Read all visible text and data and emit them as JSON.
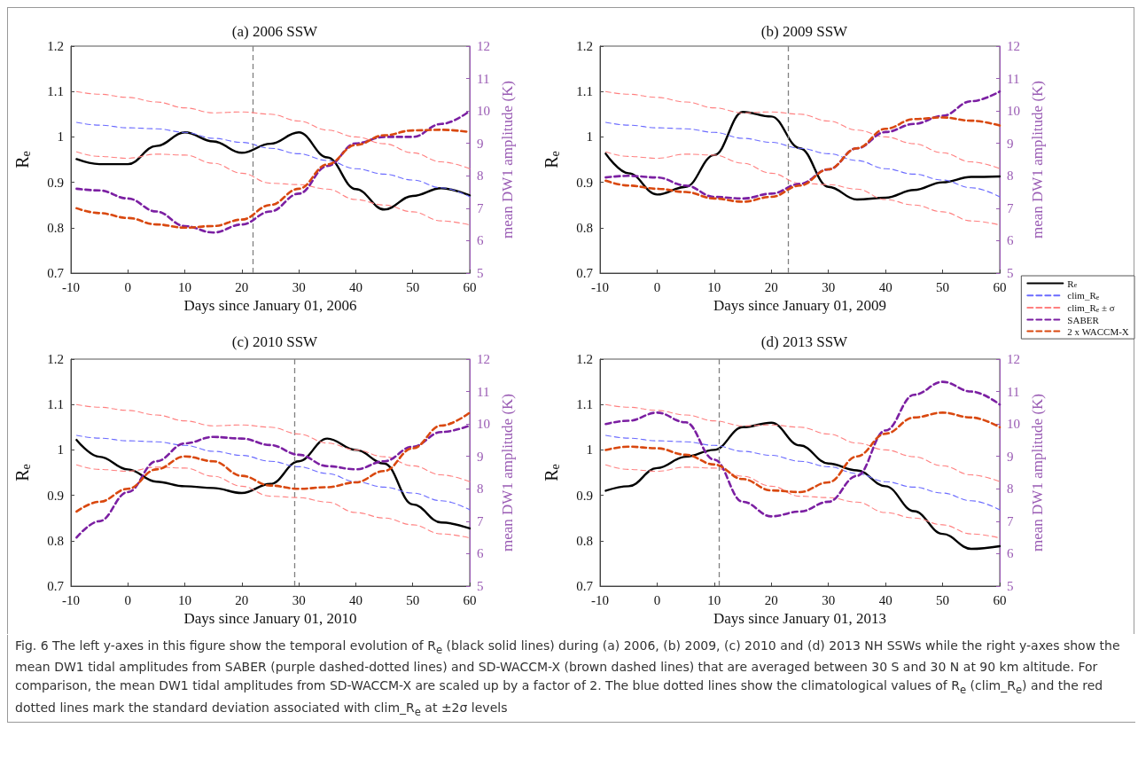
{
  "chart_data": [
    {
      "type": "line",
      "title": "(a) 2006 SSW",
      "xlabel": "Days since January 01, 2006",
      "ylabel": "R$_{e}$",
      "y2label": "mean DW1 amplitude (K)",
      "x": [
        -9,
        -5,
        0,
        5,
        10,
        15,
        20,
        25,
        30,
        35,
        40,
        45,
        50,
        55,
        60
      ],
      "xlim": [
        -10,
        60
      ],
      "xticks": [
        -10,
        0,
        10,
        20,
        30,
        40,
        50,
        60
      ],
      "ylim": [
        0.7,
        1.2
      ],
      "yticks": [
        0.7,
        0.8,
        0.9,
        1,
        1.1,
        1.2
      ],
      "y2lim": [
        5,
        12
      ],
      "y2ticks": [
        5,
        6,
        7,
        8,
        9,
        10,
        11,
        12
      ],
      "grid": false,
      "legend": false,
      "ref_lines": [
        {
          "axis": "x",
          "value": 22,
          "color": "#808080",
          "line_style": "dashed"
        }
      ],
      "series": [
        {
          "color": "#000000",
          "line_style": "solid",
          "values": [
            0.951,
            0.94,
            0.94,
            0.98,
            1.01,
            0.99,
            0.965,
            0.985,
            1.01,
            0.955,
            0.885,
            0.84,
            0.87,
            0.887,
            0.871
          ]
        },
        {
          "color": "#6b6bff",
          "line_style": "dashed",
          "values": [
            1.032,
            1.026,
            1.02,
            1.018,
            1.01,
            0.997,
            0.988,
            0.975,
            0.963,
            0.948,
            0.93,
            0.918,
            0.905,
            0.888,
            0.868
          ]
        },
        {
          "color": "#ff8080",
          "line_style": "dashed",
          "values": [
            1.1,
            1.094,
            1.087,
            1.077,
            1.064,
            1.053,
            1.055,
            1.05,
            1.035,
            1.015,
            1.0,
            0.985,
            0.965,
            0.945,
            0.93
          ]
        },
        {
          "color": "#ff8080",
          "line_style": "dashed",
          "values": [
            0.967,
            0.957,
            0.953,
            0.962,
            0.96,
            0.942,
            0.92,
            0.898,
            0.895,
            0.885,
            0.862,
            0.85,
            0.835,
            0.815,
            0.806
          ]
        },
        {
          "color": "#7b1fa2",
          "line_style": "dashed",
          "axis": "y2",
          "values": [
            7.6,
            7.55,
            7.3,
            6.9,
            6.45,
            6.25,
            6.5,
            6.9,
            7.45,
            8.3,
            9.0,
            9.2,
            9.2,
            9.6,
            10.0
          ]
        },
        {
          "color": "#d9480f",
          "line_style": "dashed",
          "axis": "y2",
          "values": [
            7.0,
            6.85,
            6.7,
            6.5,
            6.4,
            6.45,
            6.65,
            7.1,
            7.6,
            8.35,
            8.95,
            9.25,
            9.4,
            9.42,
            9.35
          ]
        }
      ]
    },
    {
      "type": "line",
      "title": "(b) 2009 SSW",
      "xlabel": "Days since January 01, 2009",
      "ylabel": "R$_{e}$",
      "y2label": "mean DW1 amplitude (K)",
      "x": [
        -9,
        -5,
        0,
        5,
        10,
        15,
        20,
        25,
        30,
        35,
        40,
        45,
        50,
        55,
        60
      ],
      "xlim": [
        -10,
        60
      ],
      "xticks": [
        -10,
        0,
        10,
        20,
        30,
        40,
        50,
        60
      ],
      "ylim": [
        0.7,
        1.2
      ],
      "yticks": [
        0.7,
        0.8,
        0.9,
        1,
        1.1,
        1.2
      ],
      "y2lim": [
        5,
        12
      ],
      "y2ticks": [
        5,
        6,
        7,
        8,
        9,
        10,
        11,
        12
      ],
      "grid": false,
      "legend": "right",
      "ref_lines": [
        {
          "axis": "x",
          "value": 23,
          "color": "#808080",
          "line_style": "dashed"
        }
      ],
      "series": [
        {
          "name": "R$_{e}$",
          "color": "#000000",
          "line_style": "solid",
          "values": [
            0.963,
            0.92,
            0.873,
            0.89,
            0.96,
            1.055,
            1.045,
            0.975,
            0.89,
            0.862,
            0.866,
            0.883,
            0.9,
            0.912,
            0.913
          ]
        },
        {
          "name": "clim_R$_{e}$",
          "color": "#6b6bff",
          "line_style": "dashed",
          "values": [
            1.032,
            1.026,
            1.02,
            1.018,
            1.01,
            0.997,
            0.988,
            0.975,
            0.963,
            0.948,
            0.93,
            0.918,
            0.905,
            0.888,
            0.868
          ]
        },
        {
          "name": "clim_R$_{e}$ ± σ",
          "color": "#ff8080",
          "line_style": "dashed",
          "values": [
            1.1,
            1.094,
            1.087,
            1.077,
            1.064,
            1.053,
            1.055,
            1.05,
            1.035,
            1.015,
            1.0,
            0.985,
            0.965,
            0.945,
            0.93
          ]
        },
        {
          "color": "#ff8080",
          "line_style": "dashed",
          "values": [
            0.967,
            0.957,
            0.953,
            0.962,
            0.96,
            0.942,
            0.92,
            0.898,
            0.895,
            0.885,
            0.862,
            0.85,
            0.835,
            0.815,
            0.806
          ]
        },
        {
          "name": "SABER",
          "color": "#7b1fa2",
          "line_style": "dashed",
          "axis": "y2",
          "values": [
            7.95,
            8.0,
            7.95,
            7.7,
            7.35,
            7.3,
            7.45,
            7.75,
            8.2,
            8.85,
            9.35,
            9.6,
            9.85,
            10.3,
            10.6
          ]
        },
        {
          "name": "2 x WACCM-X",
          "color": "#d9480f",
          "line_style": "dashed",
          "axis": "y2",
          "values": [
            7.85,
            7.7,
            7.6,
            7.5,
            7.3,
            7.2,
            7.35,
            7.7,
            8.2,
            8.85,
            9.45,
            9.75,
            9.8,
            9.7,
            9.55
          ]
        }
      ]
    },
    {
      "type": "line",
      "title": "(c) 2010 SSW",
      "xlabel": "Days since January 01, 2010",
      "ylabel": "R$_{e}$",
      "y2label": "mean DW1 amplitude (K)",
      "x": [
        -9,
        -5,
        0,
        5,
        10,
        15,
        20,
        25,
        30,
        35,
        40,
        45,
        50,
        55,
        60
      ],
      "xlim": [
        -10,
        60
      ],
      "xticks": [
        -10,
        0,
        10,
        20,
        30,
        40,
        50,
        60
      ],
      "ylim": [
        0.7,
        1.2
      ],
      "yticks": [
        0.7,
        0.8,
        0.9,
        1,
        1.1,
        1.2
      ],
      "y2lim": [
        5,
        12
      ],
      "y2ticks": [
        5,
        6,
        7,
        8,
        9,
        10,
        11,
        12
      ],
      "grid": false,
      "legend": false,
      "ref_lines": [
        {
          "axis": "x",
          "value": 29.3,
          "color": "#808080",
          "line_style": "dashed"
        }
      ],
      "series": [
        {
          "color": "#000000",
          "line_style": "solid",
          "values": [
            1.022,
            0.985,
            0.957,
            0.93,
            0.92,
            0.916,
            0.905,
            0.925,
            0.975,
            1.025,
            1.0,
            0.97,
            0.88,
            0.84,
            0.827
          ]
        },
        {
          "color": "#6b6bff",
          "line_style": "dashed",
          "values": [
            1.032,
            1.026,
            1.02,
            1.018,
            1.01,
            0.997,
            0.988,
            0.975,
            0.963,
            0.948,
            0.93,
            0.918,
            0.905,
            0.888,
            0.868
          ]
        },
        {
          "color": "#ff8080",
          "line_style": "dashed",
          "values": [
            1.1,
            1.094,
            1.087,
            1.077,
            1.064,
            1.053,
            1.055,
            1.05,
            1.035,
            1.015,
            1.0,
            0.985,
            0.965,
            0.945,
            0.93
          ]
        },
        {
          "color": "#ff8080",
          "line_style": "dashed",
          "values": [
            0.967,
            0.957,
            0.953,
            0.962,
            0.96,
            0.942,
            0.92,
            0.898,
            0.895,
            0.885,
            0.862,
            0.85,
            0.835,
            0.815,
            0.806
          ]
        },
        {
          "color": "#7b1fa2",
          "line_style": "dashed",
          "axis": "y2",
          "values": [
            6.5,
            7.0,
            7.9,
            8.85,
            9.4,
            9.6,
            9.55,
            9.35,
            9.05,
            8.7,
            8.6,
            8.85,
            9.3,
            9.75,
            9.95
          ]
        },
        {
          "color": "#d9480f",
          "line_style": "dashed",
          "axis": "y2",
          "values": [
            7.3,
            7.6,
            8.0,
            8.6,
            9.0,
            8.85,
            8.4,
            8.1,
            8.0,
            8.05,
            8.2,
            8.55,
            9.25,
            9.95,
            10.35
          ]
        }
      ]
    },
    {
      "type": "line",
      "title": "(d) 2013 SSW",
      "xlabel": "Days since January 01, 2013",
      "ylabel": "R$_{e}$",
      "y2label": "mean DW1 amplitude (K)",
      "x": [
        -9,
        -5,
        0,
        5,
        10,
        15,
        20,
        25,
        30,
        35,
        40,
        45,
        50,
        55,
        60
      ],
      "xlim": [
        -10,
        60
      ],
      "xticks": [
        -10,
        0,
        10,
        20,
        30,
        40,
        50,
        60
      ],
      "ylim": [
        0.7,
        1.2
      ],
      "yticks": [
        0.7,
        0.8,
        0.9,
        1,
        1.1,
        1.2
      ],
      "y2lim": [
        5,
        12
      ],
      "y2ticks": [
        5,
        6,
        7,
        8,
        9,
        10,
        11,
        12
      ],
      "grid": false,
      "legend": false,
      "ref_lines": [
        {
          "axis": "x",
          "value": 10.8,
          "color": "#808080",
          "line_style": "dashed"
        }
      ],
      "annotations": [
        "Fig. 6 The left y-axes in this figure show the temporal evolution of R$_{e}$ (black solid lines) during (a) 2006, (b) 2009, (c) 2010 and (d) 2013 NH SSWs while the right y-axes show the mean DW1 tidal amplitudes from SABER (purple dashed-dotted lines) and SD-WACCM-X (brown dashed lines) that are averaged between 30 S and 30 N at 90 km altitude. For comparison, the mean DW1 tidal amplitudes from SD-WACCM-X are scaled up by a factor of 2. The blue dotted lines show the climatological values of R$_{e}$ (clim_R$_{e}$) and the red dotted lines mark the standard deviation associated with clim_R$_{e}$ at ±2σ levels"
      ],
      "series": [
        {
          "color": "#000000",
          "line_style": "solid",
          "values": [
            0.91,
            0.92,
            0.96,
            0.985,
            1.0,
            1.05,
            1.06,
            1.01,
            0.97,
            0.955,
            0.92,
            0.865,
            0.815,
            0.782,
            0.788
          ]
        },
        {
          "color": "#6b6bff",
          "line_style": "dashed",
          "values": [
            1.032,
            1.026,
            1.02,
            1.018,
            1.01,
            0.997,
            0.988,
            0.975,
            0.963,
            0.948,
            0.93,
            0.918,
            0.905,
            0.888,
            0.868
          ]
        },
        {
          "color": "#ff8080",
          "line_style": "dashed",
          "values": [
            1.1,
            1.094,
            1.087,
            1.077,
            1.064,
            1.053,
            1.055,
            1.05,
            1.035,
            1.015,
            1.0,
            0.985,
            0.965,
            0.945,
            0.93
          ]
        },
        {
          "color": "#ff8080",
          "line_style": "dashed",
          "values": [
            0.967,
            0.957,
            0.953,
            0.962,
            0.96,
            0.942,
            0.92,
            0.898,
            0.895,
            0.885,
            0.862,
            0.85,
            0.835,
            0.815,
            0.806
          ]
        },
        {
          "color": "#7b1fa2",
          "line_style": "dashed",
          "axis": "y2",
          "values": [
            10.0,
            10.1,
            10.35,
            10.05,
            8.9,
            7.6,
            7.15,
            7.3,
            7.6,
            8.4,
            9.8,
            10.9,
            11.3,
            11.0,
            10.6
          ]
        },
        {
          "color": "#d9480f",
          "line_style": "dashed",
          "axis": "y2",
          "values": [
            9.2,
            9.3,
            9.25,
            9.05,
            8.75,
            8.3,
            7.95,
            7.9,
            8.2,
            9.0,
            9.7,
            10.2,
            10.35,
            10.2,
            9.9
          ]
        }
      ]
    }
  ]
}
